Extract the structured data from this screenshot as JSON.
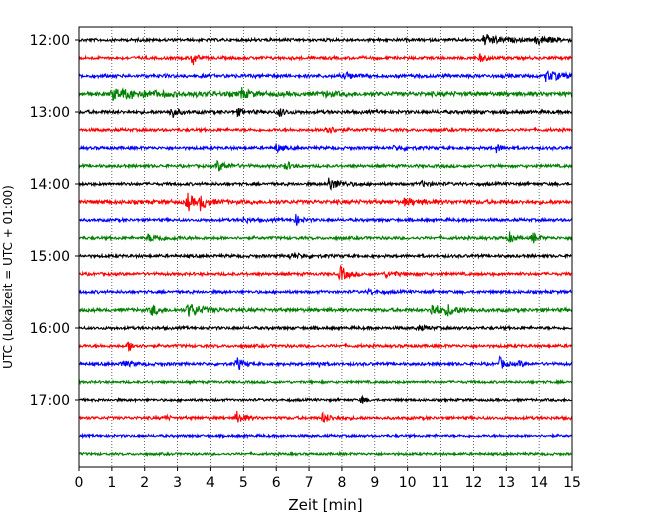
{
  "chart_data": {
    "type": "line",
    "title": "",
    "xlabel": "Zeit  [min]",
    "ylabel": "UTC (Lokalzeit = UTC + 01:00)",
    "xlim": [
      0,
      15
    ],
    "xticks": [
      0,
      1,
      2,
      3,
      4,
      5,
      6,
      7,
      8,
      9,
      10,
      11,
      12,
      13,
      14,
      15
    ],
    "grid_x": "dotted",
    "trace_interval_min": 15,
    "yticks": [
      {
        "label": "12:00",
        "trace_index": 0
      },
      {
        "label": "13:00",
        "trace_index": 4
      },
      {
        "label": "14:00",
        "trace_index": 8
      },
      {
        "label": "15:00",
        "trace_index": 12
      },
      {
        "label": "16:00",
        "trace_index": 16
      },
      {
        "label": "17:00",
        "trace_index": 20
      }
    ],
    "color_cycle": [
      "#000000",
      "#ff0000",
      "#0000ff",
      "#008000"
    ],
    "traces": [
      {
        "start": "12:00",
        "color": "#000000",
        "noise": 0.3,
        "events": [
          {
            "t": 12.3,
            "amp": 1.2,
            "dur": 0.5
          },
          {
            "t": 13.9,
            "amp": 1.0,
            "dur": 0.4
          }
        ]
      },
      {
        "start": "12:15",
        "color": "#ff0000",
        "noise": 0.3,
        "events": [
          {
            "t": 3.45,
            "amp": 2.2,
            "dur": 0.1
          },
          {
            "t": 12.2,
            "amp": 0.8,
            "dur": 0.2
          }
        ]
      },
      {
        "start": "12:30",
        "color": "#0000ff",
        "noise": 0.35,
        "events": [
          {
            "t": 8.1,
            "amp": 0.8,
            "dur": 0.2
          },
          {
            "t": 14.2,
            "amp": 1.0,
            "dur": 0.5
          }
        ]
      },
      {
        "start": "12:45",
        "color": "#008000",
        "noise": 0.45,
        "events": [
          {
            "t": 1.0,
            "amp": 1.0,
            "dur": 1.2
          },
          {
            "t": 4.9,
            "amp": 1.3,
            "dur": 0.2
          },
          {
            "t": 7.5,
            "amp": 0.5,
            "dur": 0.2
          }
        ]
      },
      {
        "start": "13:00",
        "color": "#000000",
        "noise": 0.35,
        "events": [
          {
            "t": 2.8,
            "amp": 1.5,
            "dur": 0.15
          },
          {
            "t": 6.1,
            "amp": 1.0,
            "dur": 0.15
          },
          {
            "t": 4.8,
            "amp": 0.7,
            "dur": 0.2
          }
        ]
      },
      {
        "start": "13:15",
        "color": "#ff0000",
        "noise": 0.3,
        "events": [
          {
            "t": 7.5,
            "amp": 1.3,
            "dur": 0.2
          }
        ]
      },
      {
        "start": "13:30",
        "color": "#0000ff",
        "noise": 0.3,
        "events": [
          {
            "t": 6.0,
            "amp": 1.0,
            "dur": 0.15
          },
          {
            "t": 12.7,
            "amp": 0.9,
            "dur": 0.15
          },
          {
            "t": 9.6,
            "amp": 0.5,
            "dur": 0.3
          }
        ]
      },
      {
        "start": "13:45",
        "color": "#008000",
        "noise": 0.3,
        "events": [
          {
            "t": 4.2,
            "amp": 1.1,
            "dur": 0.3
          },
          {
            "t": 6.3,
            "amp": 1.0,
            "dur": 0.15
          }
        ]
      },
      {
        "start": "14:00",
        "color": "#000000",
        "noise": 0.3,
        "events": [
          {
            "t": 7.6,
            "amp": 1.3,
            "dur": 0.35
          },
          {
            "t": 10.4,
            "amp": 0.5,
            "dur": 0.3
          }
        ]
      },
      {
        "start": "14:15",
        "color": "#ff0000",
        "noise": 0.4,
        "events": [
          {
            "t": 3.3,
            "amp": 2.2,
            "dur": 0.15
          },
          {
            "t": 3.7,
            "amp": 1.6,
            "dur": 0.2
          },
          {
            "t": 9.9,
            "amp": 0.6,
            "dur": 0.5
          }
        ]
      },
      {
        "start": "14:30",
        "color": "#0000ff",
        "noise": 0.3,
        "events": [
          {
            "t": 6.6,
            "amp": 1.1,
            "dur": 0.15
          },
          {
            "t": 5.0,
            "amp": 0.6,
            "dur": 0.2
          }
        ]
      },
      {
        "start": "14:45",
        "color": "#008000",
        "noise": 0.3,
        "events": [
          {
            "t": 2.1,
            "amp": 0.7,
            "dur": 0.5
          },
          {
            "t": 13.1,
            "amp": 1.1,
            "dur": 0.15
          },
          {
            "t": 13.8,
            "amp": 1.2,
            "dur": 0.15
          }
        ]
      },
      {
        "start": "15:00",
        "color": "#000000",
        "noise": 0.3,
        "events": [
          {
            "t": 6.4,
            "amp": 0.5,
            "dur": 0.4
          }
        ]
      },
      {
        "start": "15:15",
        "color": "#ff0000",
        "noise": 0.3,
        "events": [
          {
            "t": 7.95,
            "amp": 1.8,
            "dur": 0.2
          },
          {
            "t": 9.3,
            "amp": 0.5,
            "dur": 0.5
          }
        ]
      },
      {
        "start": "15:30",
        "color": "#0000ff",
        "noise": 0.3,
        "events": [
          {
            "t": 8.8,
            "amp": 0.6,
            "dur": 0.2
          }
        ]
      },
      {
        "start": "15:45",
        "color": "#008000",
        "noise": 0.35,
        "events": [
          {
            "t": 2.2,
            "amp": 1.3,
            "dur": 0.2
          },
          {
            "t": 3.3,
            "amp": 1.5,
            "dur": 0.4
          },
          {
            "t": 10.7,
            "amp": 1.5,
            "dur": 0.3
          },
          {
            "t": 11.2,
            "amp": 1.0,
            "dur": 0.3
          }
        ]
      },
      {
        "start": "16:00",
        "color": "#000000",
        "noise": 0.3,
        "events": [
          {
            "t": 10.3,
            "amp": 0.5,
            "dur": 0.3
          }
        ]
      },
      {
        "start": "16:15",
        "color": "#ff0000",
        "noise": 0.3,
        "events": [
          {
            "t": 1.5,
            "amp": 1.3,
            "dur": 0.15
          }
        ]
      },
      {
        "start": "16:30",
        "color": "#0000ff",
        "noise": 0.3,
        "events": [
          {
            "t": 1.3,
            "amp": 0.6,
            "dur": 0.3
          },
          {
            "t": 4.8,
            "amp": 1.5,
            "dur": 0.15
          },
          {
            "t": 7.3,
            "amp": 0.8,
            "dur": 0.1
          },
          {
            "t": 12.8,
            "amp": 1.4,
            "dur": 0.15
          },
          {
            "t": 13.4,
            "amp": 0.8,
            "dur": 0.1
          }
        ]
      },
      {
        "start": "16:45",
        "color": "#008000",
        "noise": 0.25,
        "events": []
      },
      {
        "start": "17:00",
        "color": "#000000",
        "noise": 0.25,
        "events": [
          {
            "t": 8.6,
            "amp": 1.0,
            "dur": 0.1
          }
        ]
      },
      {
        "start": "17:15",
        "color": "#ff0000",
        "noise": 0.3,
        "events": [
          {
            "t": 4.8,
            "amp": 1.4,
            "dur": 0.2
          },
          {
            "t": 7.4,
            "amp": 1.0,
            "dur": 0.3
          },
          {
            "t": 2.6,
            "amp": 0.8,
            "dur": 0.1
          }
        ]
      },
      {
        "start": "17:30",
        "color": "#0000ff",
        "noise": 0.25,
        "events": []
      },
      {
        "start": "17:45",
        "color": "#008000",
        "noise": 0.25,
        "events": []
      }
    ]
  }
}
